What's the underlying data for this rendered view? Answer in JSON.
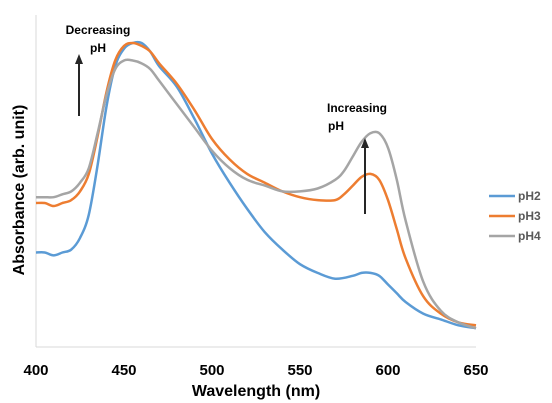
{
  "chart_data": {
    "type": "line",
    "title": "",
    "xlabel": "Wavelength (nm)",
    "ylabel": "Absorbance (arb. unit)",
    "xlim": [
      400,
      650
    ],
    "ylim": [
      0,
      1
    ],
    "x_ticks": [
      "400",
      "450",
      "500",
      "550",
      "600",
      "650"
    ],
    "grid": false,
    "legend_position": "right",
    "series": [
      {
        "name": "pH2",
        "color": "#5B9BD5",
        "x": [
          400,
          405,
          410,
          415,
          420,
          425,
          430,
          435,
          440,
          445,
          450,
          455,
          460,
          465,
          470,
          480,
          490,
          500,
          510,
          520,
          530,
          540,
          550,
          560,
          570,
          580,
          585,
          590,
          595,
          600,
          605,
          610,
          620,
          630,
          640,
          650
        ],
        "y": [
          0.28,
          0.28,
          0.27,
          0.28,
          0.29,
          0.33,
          0.41,
          0.58,
          0.78,
          0.92,
          0.98,
          1.0,
          1.0,
          0.97,
          0.92,
          0.85,
          0.74,
          0.62,
          0.52,
          0.43,
          0.35,
          0.29,
          0.24,
          0.21,
          0.19,
          0.2,
          0.21,
          0.21,
          0.2,
          0.17,
          0.14,
          0.11,
          0.07,
          0.05,
          0.03,
          0.02
        ]
      },
      {
        "name": "pH3",
        "color": "#ED7D31",
        "x": [
          400,
          405,
          410,
          415,
          420,
          425,
          430,
          435,
          440,
          445,
          450,
          455,
          460,
          465,
          470,
          480,
          490,
          500,
          510,
          520,
          530,
          540,
          550,
          560,
          570,
          575,
          580,
          585,
          590,
          595,
          600,
          605,
          610,
          620,
          630,
          640,
          650
        ],
        "y": [
          0.45,
          0.45,
          0.44,
          0.45,
          0.46,
          0.49,
          0.55,
          0.68,
          0.83,
          0.94,
          0.99,
          1.0,
          0.99,
          0.97,
          0.93,
          0.86,
          0.77,
          0.67,
          0.6,
          0.55,
          0.52,
          0.49,
          0.47,
          0.46,
          0.46,
          0.48,
          0.51,
          0.54,
          0.55,
          0.53,
          0.46,
          0.36,
          0.26,
          0.13,
          0.07,
          0.04,
          0.03
        ]
      },
      {
        "name": "pH4",
        "color": "#A5A5A5",
        "x": [
          400,
          405,
          410,
          415,
          420,
          425,
          430,
          435,
          440,
          445,
          450,
          455,
          460,
          465,
          470,
          480,
          490,
          500,
          510,
          520,
          530,
          540,
          550,
          560,
          570,
          575,
          580,
          585,
          590,
          595,
          600,
          605,
          610,
          620,
          630,
          640,
          650
        ],
        "y": [
          0.47,
          0.47,
          0.47,
          0.48,
          0.49,
          0.52,
          0.57,
          0.69,
          0.82,
          0.91,
          0.94,
          0.94,
          0.93,
          0.91,
          0.87,
          0.79,
          0.71,
          0.63,
          0.57,
          0.53,
          0.51,
          0.49,
          0.49,
          0.5,
          0.53,
          0.56,
          0.61,
          0.66,
          0.69,
          0.69,
          0.64,
          0.53,
          0.39,
          0.18,
          0.08,
          0.04,
          0.02
        ]
      }
    ],
    "annotations": [
      {
        "line1": "Decreasing",
        "line2": "pH"
      },
      {
        "line1": "Increasing",
        "line2": "pH"
      }
    ]
  }
}
